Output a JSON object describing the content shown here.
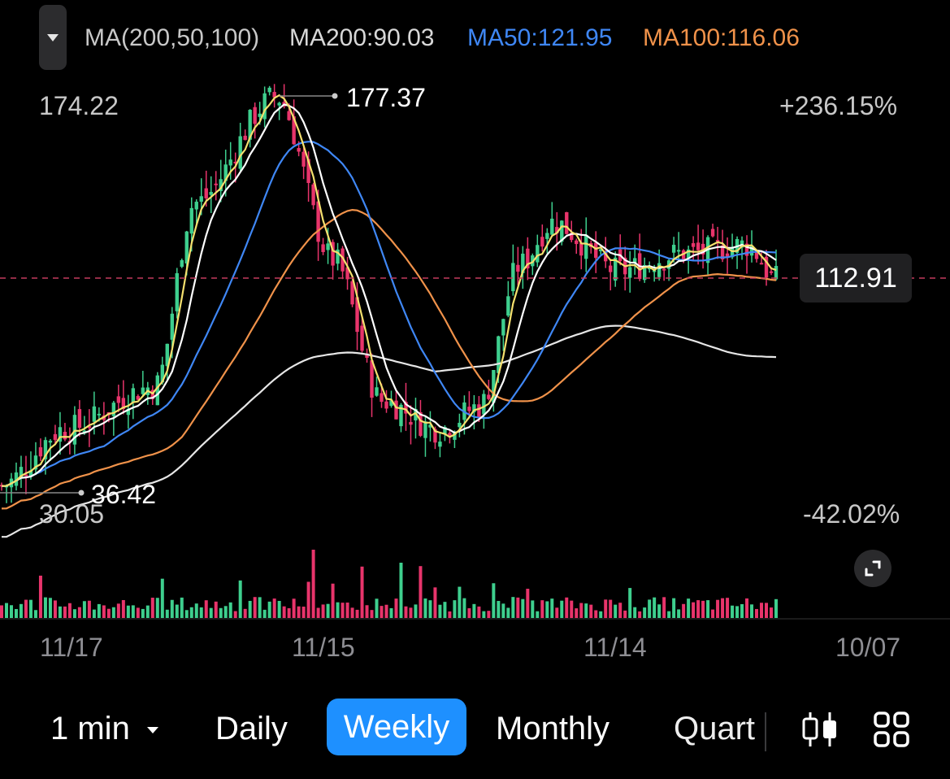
{
  "indicator": {
    "name": "MA(200,50,100)",
    "ma200_label": "MA200:90.03",
    "ma50_label": "MA50:121.95",
    "ma100_label": "MA100:116.06",
    "colors": {
      "ma200": "#e6e6e6",
      "ma50": "#3f87f5",
      "ma100": "#f0924a",
      "ma_short": "#f5e06e",
      "ma_mid": "#ffffff"
    }
  },
  "price_axis": {
    "max_label": "174.22",
    "min_label": "30.05",
    "high_marker": "177.37",
    "low_marker": "36.42",
    "max_percent": "+236.15%",
    "min_percent": "-42.02%",
    "current_price": "112.91"
  },
  "dates": [
    "11/17",
    "11/15",
    "11/14",
    "10/07"
  ],
  "timeframes": {
    "minute": "1 min",
    "daily": "Daily",
    "weekly": "Weekly",
    "monthly": "Monthly",
    "quarterly": "Quarterly",
    "active": "Weekly"
  },
  "chart_data": {
    "type": "candlestick",
    "up_color": "#3ecf8e",
    "down_color": "#e8346b",
    "ylim": [
      30.05,
      174.22
    ],
    "current_price": 112.91,
    "price_anchors": [
      {
        "date": "11/17",
        "close": 40
      },
      {
        "date": "11/17",
        "close": 60
      },
      {
        "date": "",
        "close": 75
      },
      {
        "date": "",
        "close": 140
      },
      {
        "date": "",
        "close": 177.37
      },
      {
        "date": "11/15",
        "close": 120
      },
      {
        "date": "",
        "close": 70
      },
      {
        "date": "",
        "close": 60
      },
      {
        "date": "",
        "close": 68
      },
      {
        "date": "",
        "close": 118
      },
      {
        "date": "",
        "close": 133
      },
      {
        "date": "11/14",
        "close": 116
      },
      {
        "date": "",
        "close": 122
      },
      {
        "date": "",
        "close": 125
      },
      {
        "date": "10/07",
        "close": 112.91
      }
    ],
    "moving_averages": [
      {
        "name": "MA200",
        "last": 90.03
      },
      {
        "name": "MA50",
        "last": 121.95
      },
      {
        "name": "MA100",
        "last": 116.06
      }
    ]
  }
}
